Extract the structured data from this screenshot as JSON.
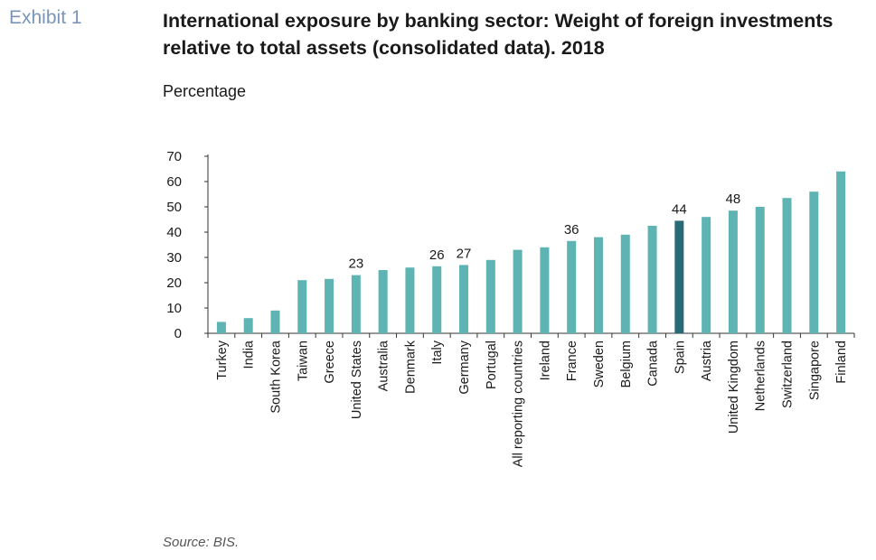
{
  "header": {
    "exhibit_label": "Exhibit 1",
    "title": "International exposure by banking sector: Weight of foreign investments relative to total assets (consolidated data). 2018",
    "subtitle": "Percentage"
  },
  "footer": {
    "source": "Source: BIS."
  },
  "colors": {
    "bar": "#5eb3b3",
    "highlight_bar": "#2a6a78",
    "axis": "#333333",
    "text": "#1a1a1a"
  },
  "chart_data": {
    "type": "bar",
    "categories": [
      "Turkey",
      "India",
      "South Korea",
      "Taiwan",
      "Greece",
      "United States",
      "Australia",
      "Denmark",
      "Italy",
      "Germany",
      "Portugal",
      "All reporting countries",
      "Ireland",
      "France",
      "Sweden",
      "Belgium",
      "Canada",
      "Spain",
      "Austria",
      "United Kingdom",
      "Netherlands",
      "Switzerland",
      "Singapore",
      "Finland"
    ],
    "values": [
      4.5,
      6,
      9,
      21,
      21.5,
      23,
      25,
      26,
      26.5,
      27,
      29,
      33,
      34,
      36.5,
      38,
      39,
      42.5,
      44.5,
      46,
      48.5,
      50,
      53.5,
      56,
      64
    ],
    "data_labels": [
      null,
      null,
      null,
      null,
      null,
      "23",
      null,
      null,
      "26",
      "27",
      null,
      null,
      null,
      "36",
      null,
      null,
      null,
      "44",
      null,
      "48",
      null,
      null,
      null,
      null
    ],
    "highlight": "Spain",
    "yticks": [
      "0",
      "10",
      "20",
      "30",
      "40",
      "50",
      "60",
      "70"
    ],
    "ylim": [
      0,
      70
    ],
    "title": "",
    "xlabel": "",
    "ylabel": ""
  }
}
